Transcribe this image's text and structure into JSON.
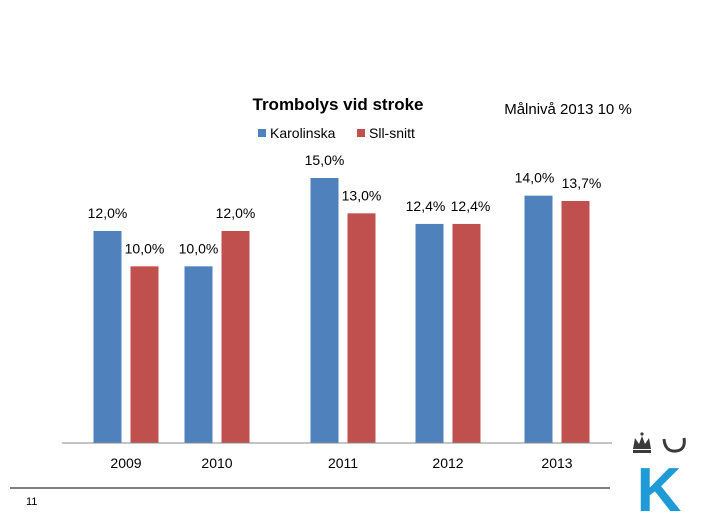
{
  "chart_data": {
    "type": "bar",
    "title": "Trombolys vid stroke",
    "annotation": "Målnivå 2013 10 %",
    "categories": [
      "2009",
      "2010",
      "2011",
      "2012",
      "2013"
    ],
    "series": [
      {
        "name": "Karolinska",
        "color": "#4F81BD",
        "values": [
          12.0,
          10.0,
          15.0,
          12.4,
          14.0
        ],
        "labels": [
          "12,0%",
          "10,0%",
          "15,0%",
          "12,4%",
          "14,0%"
        ]
      },
      {
        "name": "Sll-snitt",
        "color": "#C0504D",
        "values": [
          10.0,
          12.0,
          13.0,
          12.4,
          13.7
        ],
        "labels": [
          "10,0%",
          "12,0%",
          "13,0%",
          "12,4%",
          "13,7%"
        ]
      }
    ],
    "xlabel": "",
    "ylabel": "",
    "ylim": [
      0,
      15
    ],
    "grid": false,
    "legend": "top"
  },
  "page_number": "11",
  "logo": {
    "letter": "K",
    "color": "#1E9BD7"
  }
}
